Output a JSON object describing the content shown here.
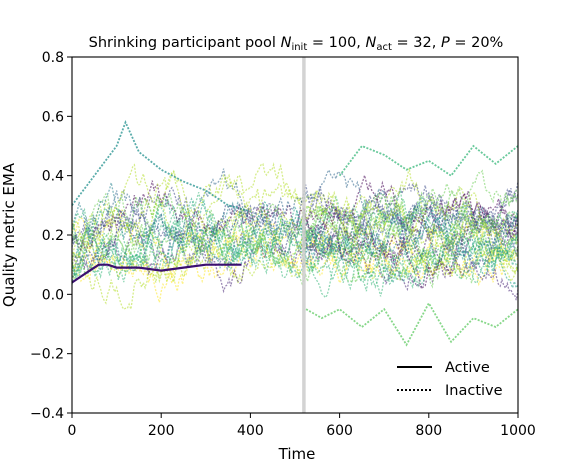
{
  "chart_data": {
    "type": "line",
    "title": {
      "prefix": "Shrinking participant pool ",
      "n_init_symbol": "N",
      "n_init_sub": "init",
      "n_init_value": " = 100, ",
      "n_act_symbol": "N",
      "n_act_sub": "act",
      "n_act_value": " = 32, ",
      "p_symbol": "P",
      "p_value": " = 20%"
    },
    "xlabel": "Time",
    "ylabel": "Quality metric EMA",
    "xlim": [
      0,
      1000
    ],
    "ylim": [
      -0.4,
      0.8
    ],
    "x_ticks": [
      0,
      200,
      400,
      600,
      800,
      1000
    ],
    "y_ticks": [
      -0.4,
      -0.2,
      0.0,
      0.2,
      0.4,
      0.6,
      0.8
    ],
    "x_tick_labels": [
      "0",
      "200",
      "400",
      "600",
      "800",
      "1000"
    ],
    "y_tick_labels": [
      "−0.4",
      "−0.2",
      "0.0",
      "0.2",
      "0.4",
      "0.6",
      "0.8"
    ],
    "vertical_line_x": 520,
    "vertical_line_color": "#cccccc",
    "colormap": "viridis",
    "legend": {
      "placement": "lower-right",
      "entries": [
        {
          "label": "Active",
          "style": "solid"
        },
        {
          "label": "Inactive",
          "style": "dotted"
        }
      ]
    },
    "series": [
      {
        "color": "#3b0f70",
        "style": "solid",
        "active": true,
        "x": [
          0,
          20,
          40,
          60,
          80,
          100,
          150,
          200,
          250,
          300,
          350,
          380
        ],
        "y": [
          0.04,
          0.06,
          0.08,
          0.1,
          0.1,
          0.09,
          0.09,
          0.08,
          0.09,
          0.1,
          0.1,
          0.1
        ]
      },
      {
        "color": "#5ec962",
        "style": "dotted",
        "active": false,
        "x": [
          525,
          560,
          600,
          650,
          700,
          750,
          800,
          850,
          900,
          950,
          1000
        ],
        "y": [
          -0.05,
          -0.08,
          -0.05,
          -0.11,
          -0.05,
          -0.17,
          -0.03,
          -0.16,
          -0.08,
          -0.11,
          -0.05
        ]
      },
      {
        "color": "#21908d",
        "style": "dotted",
        "active": false,
        "x": [
          0,
          50,
          100,
          120,
          150,
          200,
          250,
          300,
          350,
          400
        ],
        "y": [
          0.3,
          0.4,
          0.5,
          0.58,
          0.48,
          0.42,
          0.38,
          0.35,
          0.3,
          0.28
        ]
      },
      {
        "color": "#35b779",
        "style": "dotted",
        "active": false,
        "x": [
          600,
          650,
          700,
          750,
          800,
          850,
          900,
          950,
          1000
        ],
        "y": [
          0.4,
          0.5,
          0.47,
          0.42,
          0.45,
          0.4,
          0.5,
          0.44,
          0.5
        ]
      }
    ]
  }
}
